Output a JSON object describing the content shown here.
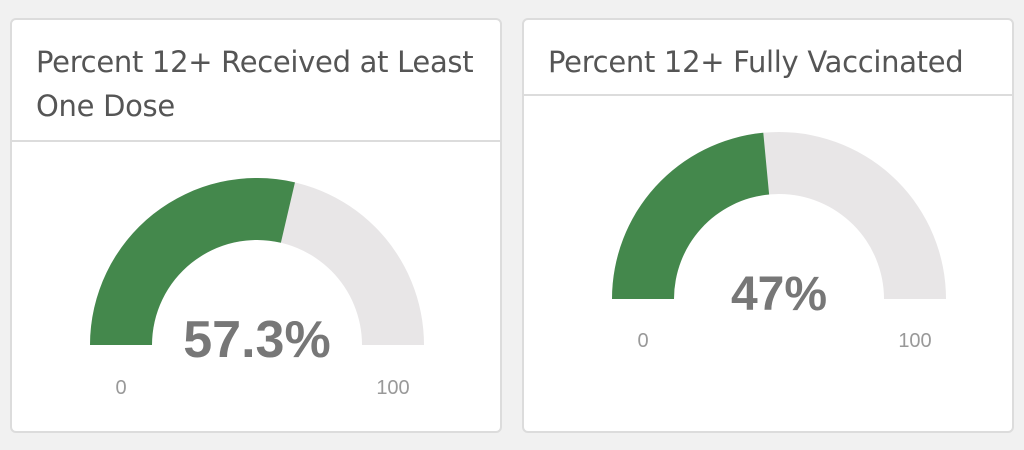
{
  "chart_data": [
    {
      "type": "gauge",
      "title": "Percent 12+ Received at Least One Dose",
      "value": 57.3,
      "value_label": "57.3%",
      "min": 0,
      "max": 100,
      "min_label": "0",
      "max_label": "100"
    },
    {
      "type": "gauge",
      "title": "Percent 12+ Fully Vaccinated",
      "value": 47,
      "value_label": "47%",
      "min": 0,
      "max": 100,
      "min_label": "0",
      "max_label": "100"
    }
  ],
  "colors": {
    "fill": "#44884c",
    "track": "#e8e6e7",
    "value_text": "#777777",
    "tick_text": "#999999"
  }
}
